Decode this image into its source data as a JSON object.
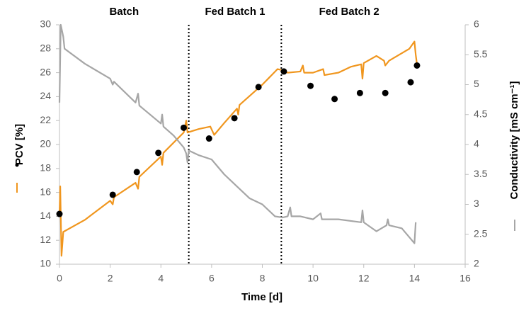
{
  "chart_data": {
    "type": "line",
    "x_label": "Time [d]",
    "y_label": "PCV [%]",
    "y2_label": "Conductivity [mS cm⁻¹]",
    "xlim": [
      0,
      16
    ],
    "xticks": [
      0,
      2,
      4,
      6,
      8,
      10,
      12,
      14,
      16
    ],
    "ylim": [
      10,
      30
    ],
    "yticks": [
      10,
      12,
      14,
      16,
      18,
      20,
      22,
      24,
      26,
      28,
      30
    ],
    "y2lim": [
      2,
      6
    ],
    "y2ticks": [
      2,
      2.5,
      3,
      3.5,
      4,
      4.5,
      5,
      5.5,
      6
    ],
    "phases": {
      "labels": [
        "Batch",
        "Fed Batch 1",
        "Fed Batch 2"
      ],
      "boundaries": [
        5.1,
        8.75
      ]
    },
    "series": [
      {
        "kind": "scatter",
        "color": "#000000",
        "x": [
          0,
          2.1,
          3.05,
          3.9,
          4.9,
          5.9,
          6.9,
          7.85,
          8.85,
          9.9,
          10.85,
          11.85,
          12.85,
          13.85,
          14.1
        ],
        "values": [
          14.2,
          15.8,
          17.7,
          19.3,
          21.4,
          20.5,
          22.2,
          24.8,
          26.1,
          24.9,
          23.8,
          24.3,
          24.3,
          25.2,
          26.6
        ]
      },
      {
        "kind": "line",
        "color": "#f0961e",
        "x": [
          0,
          0.03,
          0.08,
          0.15,
          1,
          2,
          2.1,
          2.15,
          3,
          3.1,
          3.15,
          4,
          4.05,
          4.1,
          4.9,
          5,
          5.05,
          5.5,
          5.95,
          6.1,
          6.5,
          7,
          7.05,
          7.1,
          8,
          8.6,
          8.8,
          9,
          9.5,
          9.6,
          9.65,
          10,
          10.4,
          10.45,
          11,
          11.5,
          11.9,
          11.95,
          12,
          12.5,
          12.8,
          12.85,
          13,
          13.8,
          14,
          14.05,
          14.1
        ],
        "values": [
          14,
          16.5,
          10.7,
          12.7,
          13.7,
          15.3,
          15,
          15.6,
          16.8,
          16.3,
          17.3,
          19,
          18.3,
          19.3,
          21,
          22,
          21,
          21.3,
          21.5,
          20.8,
          21.8,
          23,
          22.5,
          23.3,
          25,
          26.3,
          26.2,
          26,
          26.1,
          26.6,
          26,
          26,
          26.3,
          25.8,
          26,
          26.5,
          26.7,
          25.5,
          26.8,
          27.4,
          27,
          26.6,
          27,
          28,
          28.6,
          27.5,
          26.7
        ]
      },
      {
        "kind": "line",
        "axis": "y2",
        "color": "#a6a6a6",
        "x": [
          0,
          0.05,
          0.15,
          0.2,
          1,
          2,
          2.1,
          2.15,
          3,
          3.1,
          3.15,
          4,
          4.05,
          4.1,
          4.5,
          4.9,
          5,
          5.05,
          5.1,
          5.5,
          6,
          6.5,
          7,
          7.5,
          8,
          8.5,
          8.8,
          9,
          9.1,
          9.15,
          9.5,
          10,
          10.3,
          10.35,
          11,
          11.9,
          11.95,
          12,
          12.5,
          12.9,
          12.95,
          13,
          13.5,
          13.9,
          14,
          14.05
        ],
        "values": [
          4.7,
          6,
          5.8,
          5.6,
          5.35,
          5.1,
          5,
          5.05,
          4.7,
          4.85,
          4.65,
          4.35,
          4.5,
          4.3,
          4.15,
          3.95,
          3.85,
          3.7,
          3.9,
          3.82,
          3.75,
          3.5,
          3.3,
          3.1,
          3,
          2.8,
          2.78,
          2.8,
          2.95,
          2.8,
          2.8,
          2.75,
          2.85,
          2.75,
          2.75,
          2.7,
          2.9,
          2.7,
          2.55,
          2.65,
          2.75,
          2.65,
          2.6,
          2.4,
          2.35,
          2.7
        ]
      }
    ]
  }
}
